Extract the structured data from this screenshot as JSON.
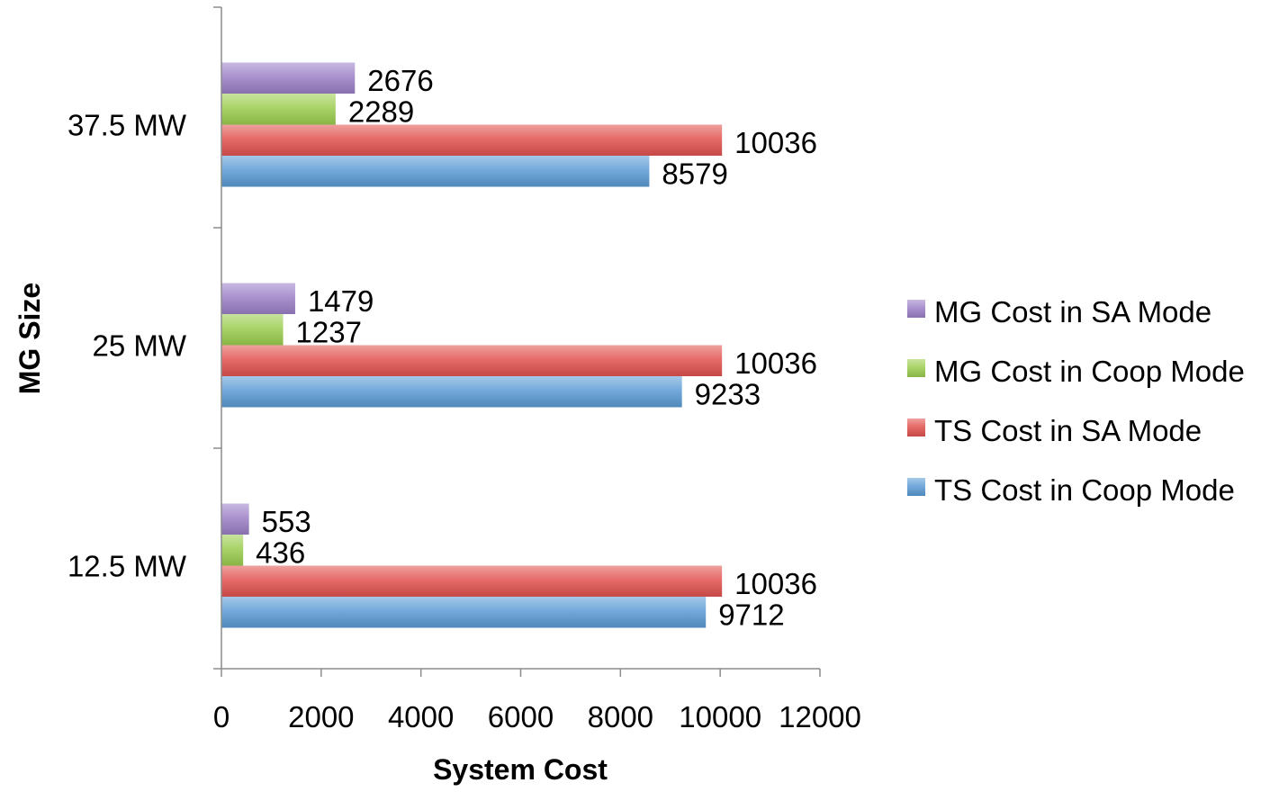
{
  "chart_data": {
    "type": "bar",
    "orientation": "horizontal",
    "title": "",
    "xlabel": "System Cost",
    "ylabel": "MG Size",
    "categories": [
      "12.5 MW",
      "25 MW",
      "37.5 MW"
    ],
    "xlim": [
      0,
      12000
    ],
    "xticks": [
      "0",
      "2000",
      "4000",
      "6000",
      "8000",
      "10000",
      "12000"
    ],
    "grid": false,
    "legend_position": "right",
    "series": [
      {
        "name": "TS Cost in Coop Mode",
        "color": "#5b9bd5",
        "values": [
          9712,
          9233,
          8579
        ]
      },
      {
        "name": "TS Cost in SA Mode",
        "color": "#e0524f",
        "values": [
          10036,
          10036,
          10036
        ]
      },
      {
        "name": "MG Cost in Coop Mode",
        "color": "#9bcc4e",
        "values": [
          436,
          1237,
          2289
        ]
      },
      {
        "name": "MG Cost in SA Mode",
        "color": "#9b7fc6",
        "values": [
          553,
          1479,
          2676
        ]
      }
    ],
    "legend_order": [
      "MG Cost in SA Mode",
      "MG Cost in Coop Mode",
      "TS Cost in SA Mode",
      "TS Cost in Coop Mode"
    ]
  }
}
